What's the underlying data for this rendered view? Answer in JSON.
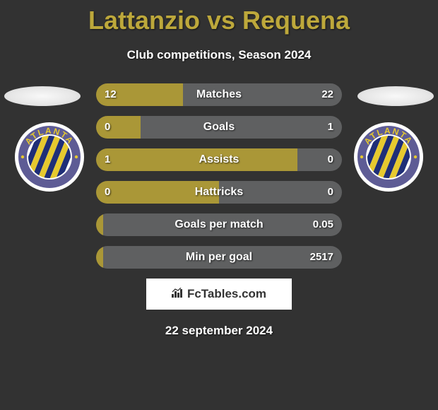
{
  "title": "Lattanzio vs Requena",
  "subtitle": "Club competitions, Season 2024",
  "date": "22 september 2024",
  "attribution": "FcTables.com",
  "colors": {
    "background": "#323232",
    "title": "#bda83b",
    "left_fill": "#aa9737",
    "right_fill": "#5f6061",
    "ellipse": "#e6e6e6",
    "attrib_bg": "#ffffff",
    "attrib_text": "#333333",
    "text": "#ffffff"
  },
  "badge": {
    "text": "ATLANTA",
    "circle_color": "#ffffff",
    "ring_color": "#5e5c95",
    "stripe_colors": [
      "#1f2e77",
      "#e6c92f"
    ],
    "ring_text_color": "#e6c92f"
  },
  "bars": [
    {
      "label": "Matches",
      "left_val": "12",
      "right_val": "22",
      "left_pct": 35.3,
      "right_pct": 64.7
    },
    {
      "label": "Goals",
      "left_val": "0",
      "right_val": "1",
      "left_pct": 18.0,
      "right_pct": 82.0
    },
    {
      "label": "Assists",
      "left_val": "1",
      "right_val": "0",
      "left_pct": 82.0,
      "right_pct": 18.0
    },
    {
      "label": "Hattricks",
      "left_val": "0",
      "right_val": "0",
      "left_pct": 50.0,
      "right_pct": 50.0
    },
    {
      "label": "Goals per match",
      "left_val": "",
      "right_val": "0.05",
      "left_pct": 3.0,
      "right_pct": 97.0
    },
    {
      "label": "Min per goal",
      "left_val": "",
      "right_val": "2517",
      "left_pct": 3.0,
      "right_pct": 97.0
    }
  ]
}
